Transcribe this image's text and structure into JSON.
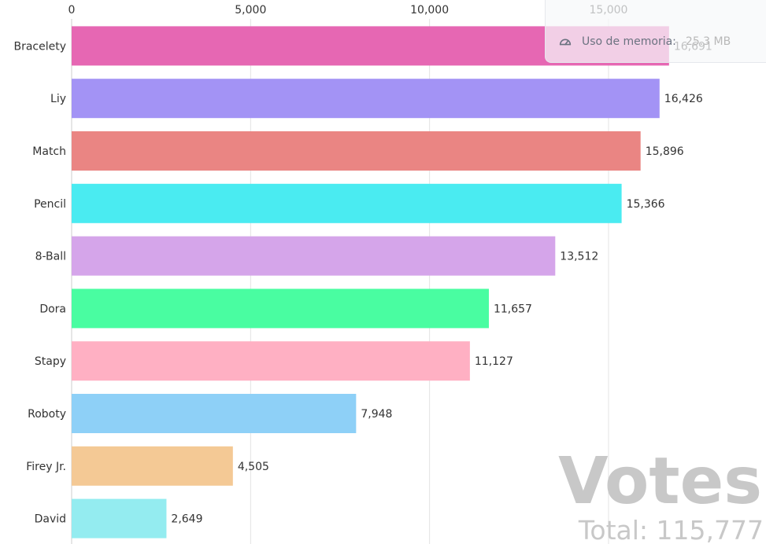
{
  "chart_data": {
    "type": "bar",
    "orientation": "horizontal",
    "categories": [
      "Bracelety",
      "Liy",
      "Match",
      "Pencil",
      "8-Ball",
      "Dora",
      "Stapy",
      "Roboty",
      "Firey Jr.",
      "David"
    ],
    "values": [
      16691,
      16426,
      15896,
      15366,
      13512,
      11657,
      11127,
      7948,
      4505,
      2649
    ],
    "value_labels": [
      "16,691",
      "16,426",
      "15,896",
      "15,366",
      "13,512",
      "11,657",
      "11,127",
      "7,948",
      "4,505",
      "2,649"
    ],
    "colors": [
      "#e667b3",
      "#a393f5",
      "#ea8583",
      "#4aebf1",
      "#d5a5ea",
      "#49fda1",
      "#ffb0c3",
      "#8ed0f7",
      "#f4c995",
      "#94ecf0"
    ],
    "xticks": [
      0,
      5000,
      10000,
      15000
    ],
    "xtick_labels": [
      "0",
      "5,000",
      "10,000",
      "15,000"
    ],
    "xlim": [
      0,
      19400
    ],
    "axis_position": "top",
    "grid": true,
    "watermark": {
      "title": "Votes",
      "total_text": "Total: 115,777"
    }
  },
  "memory_widget": {
    "icon": "gauge-icon",
    "label": "Uso de memoria:",
    "value": "25.3 MB"
  }
}
